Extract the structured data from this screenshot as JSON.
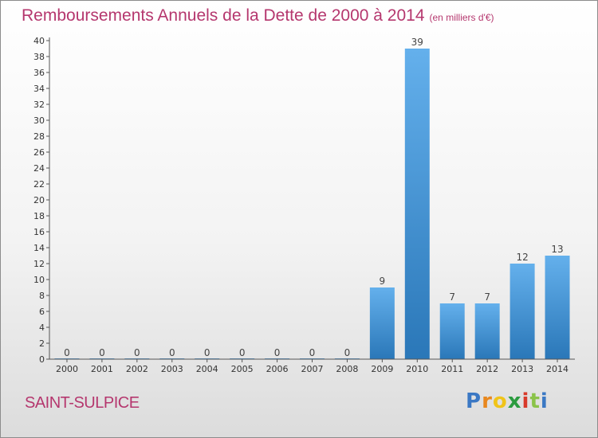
{
  "header": {
    "title": "Remboursements Annuels de la Dette de 2000 à 2014",
    "unit": "(en milliers d'€)"
  },
  "footer": {
    "commune": "SAINT-SULPICE",
    "logo_text": "Proxiti"
  },
  "colors": {
    "title": "#b5376e",
    "bar_light": "#64b0ec",
    "bar_dark": "#2a77b8",
    "axis": "#555555"
  },
  "chart_data": {
    "type": "bar",
    "title": "Remboursements Annuels de la Dette de 2000 à 2014",
    "xlabel": "",
    "ylabel": "",
    "categories": [
      "2000",
      "2001",
      "2002",
      "2003",
      "2004",
      "2005",
      "2006",
      "2007",
      "2008",
      "2009",
      "2010",
      "2011",
      "2012",
      "2013",
      "2014"
    ],
    "values": [
      0,
      0,
      0,
      0,
      0,
      0,
      0,
      0,
      0,
      9,
      39,
      7,
      7,
      12,
      13
    ],
    "ylim": [
      0,
      40
    ],
    "ytick_step": 2,
    "grid": false,
    "data_labels": true
  }
}
